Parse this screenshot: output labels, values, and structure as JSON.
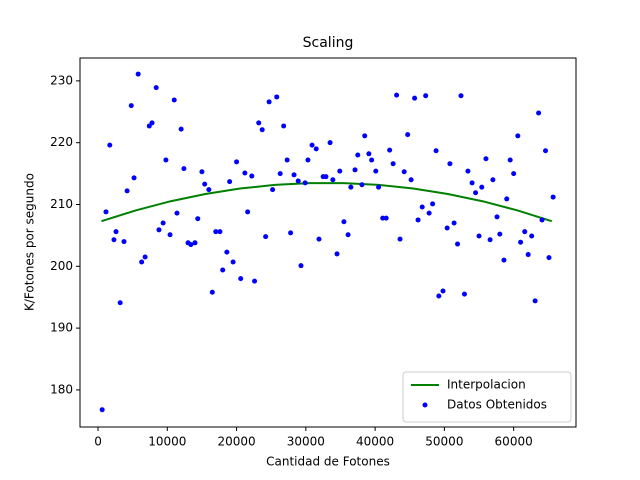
{
  "chart_data": {
    "type": "scatter",
    "title": "Scaling",
    "x_label": "Cantidad de Fotones",
    "y_label": "K/Fotones por segundo",
    "xlim": [
      -2600,
      69000
    ],
    "ylim": [
      174.0,
      233.7
    ],
    "xticks": [
      0,
      10000,
      20000,
      30000,
      40000,
      50000,
      60000
    ],
    "yticks": [
      180,
      190,
      200,
      210,
      220,
      230
    ],
    "legend": "lower right",
    "series": [
      {
        "name": "Interpolacion",
        "type": "line",
        "color": "#008000",
        "x": [
          500,
          5500,
          10500,
          15500,
          20500,
          25500,
          30500,
          35500,
          40500,
          45500,
          50500,
          55500,
          60500,
          65500
        ],
        "values": [
          207.3,
          209.06,
          210.53,
          211.7,
          212.58,
          213.17,
          213.46,
          213.46,
          213.17,
          212.58,
          211.7,
          210.53,
          209.06,
          207.3
        ]
      },
      {
        "name": "Datos Obtenidos",
        "type": "scatter",
        "color": "#0000ff",
        "x": [
          600,
          1150,
          1700,
          2300,
          2600,
          3200,
          3750,
          4200,
          4800,
          5200,
          5800,
          6300,
          6800,
          7400,
          7800,
          8400,
          8800,
          9400,
          9800,
          10400,
          11000,
          11400,
          12000,
          12400,
          13000,
          13400,
          14000,
          14400,
          15000,
          15400,
          16000,
          16500,
          17000,
          17600,
          18000,
          18600,
          19000,
          19500,
          20000,
          20600,
          21200,
          21600,
          22200,
          22600,
          23200,
          23700,
          24200,
          24700,
          25200,
          25800,
          26300,
          26800,
          27300,
          27800,
          28300,
          28900,
          29300,
          29900,
          30300,
          30900,
          31500,
          31900,
          32500,
          32900,
          33500,
          33900,
          34500,
          34900,
          35500,
          36100,
          36500,
          37100,
          37500,
          38100,
          38500,
          39100,
          39500,
          40100,
          40500,
          41100,
          41600,
          42100,
          42600,
          43100,
          43600,
          44200,
          44700,
          45200,
          45700,
          46200,
          46800,
          47300,
          47800,
          48300,
          48800,
          49200,
          49800,
          50400,
          50800,
          51400,
          51900,
          52400,
          52900,
          53400,
          54000,
          54500,
          55000,
          55400,
          56000,
          56600,
          57000,
          57600,
          58000,
          58600,
          59000,
          59500,
          60000,
          60600,
          61000,
          61600,
          62100,
          62600,
          63100,
          63600,
          64100,
          64600,
          65100,
          65700
        ],
        "values": [
          176.8,
          208.8,
          219.6,
          204.3,
          205.6,
          194.1,
          204.0,
          212.2,
          226.0,
          214.3,
          231.1,
          200.7,
          201.5,
          222.7,
          223.2,
          228.9,
          205.9,
          207.0,
          217.2,
          205.1,
          226.9,
          208.6,
          222.2,
          215.8,
          203.8,
          203.5,
          203.8,
          207.7,
          215.3,
          213.3,
          212.4,
          195.8,
          205.6,
          205.6,
          199.4,
          202.3,
          213.7,
          200.7,
          216.9,
          198.0,
          215.1,
          208.8,
          214.6,
          197.6,
          223.2,
          222.1,
          204.8,
          226.6,
          212.4,
          227.4,
          215.0,
          222.7,
          217.2,
          205.4,
          214.8,
          213.8,
          200.1,
          213.5,
          217.2,
          219.6,
          219.0,
          204.4,
          214.5,
          214.5,
          220.0,
          214.0,
          202.0,
          215.4,
          207.2,
          205.1,
          212.8,
          215.6,
          218.0,
          213.2,
          221.1,
          218.2,
          217.2,
          215.4,
          212.8,
          207.8,
          207.8,
          218.8,
          216.6,
          227.7,
          204.4,
          215.3,
          221.3,
          214.0,
          227.2,
          207.5,
          209.6,
          227.6,
          208.6,
          210.1,
          218.7,
          195.2,
          196.0,
          206.2,
          216.6,
          207.0,
          203.6,
          227.6,
          195.5,
          215.4,
          213.5,
          211.9,
          204.9,
          212.8,
          217.4,
          204.3,
          214.0,
          208.0,
          205.2,
          201.0,
          210.9,
          217.2,
          215.0,
          221.1,
          203.9,
          205.6,
          201.9,
          204.9,
          194.4,
          224.8,
          207.5,
          218.7,
          201.4,
          211.2
        ]
      }
    ]
  }
}
